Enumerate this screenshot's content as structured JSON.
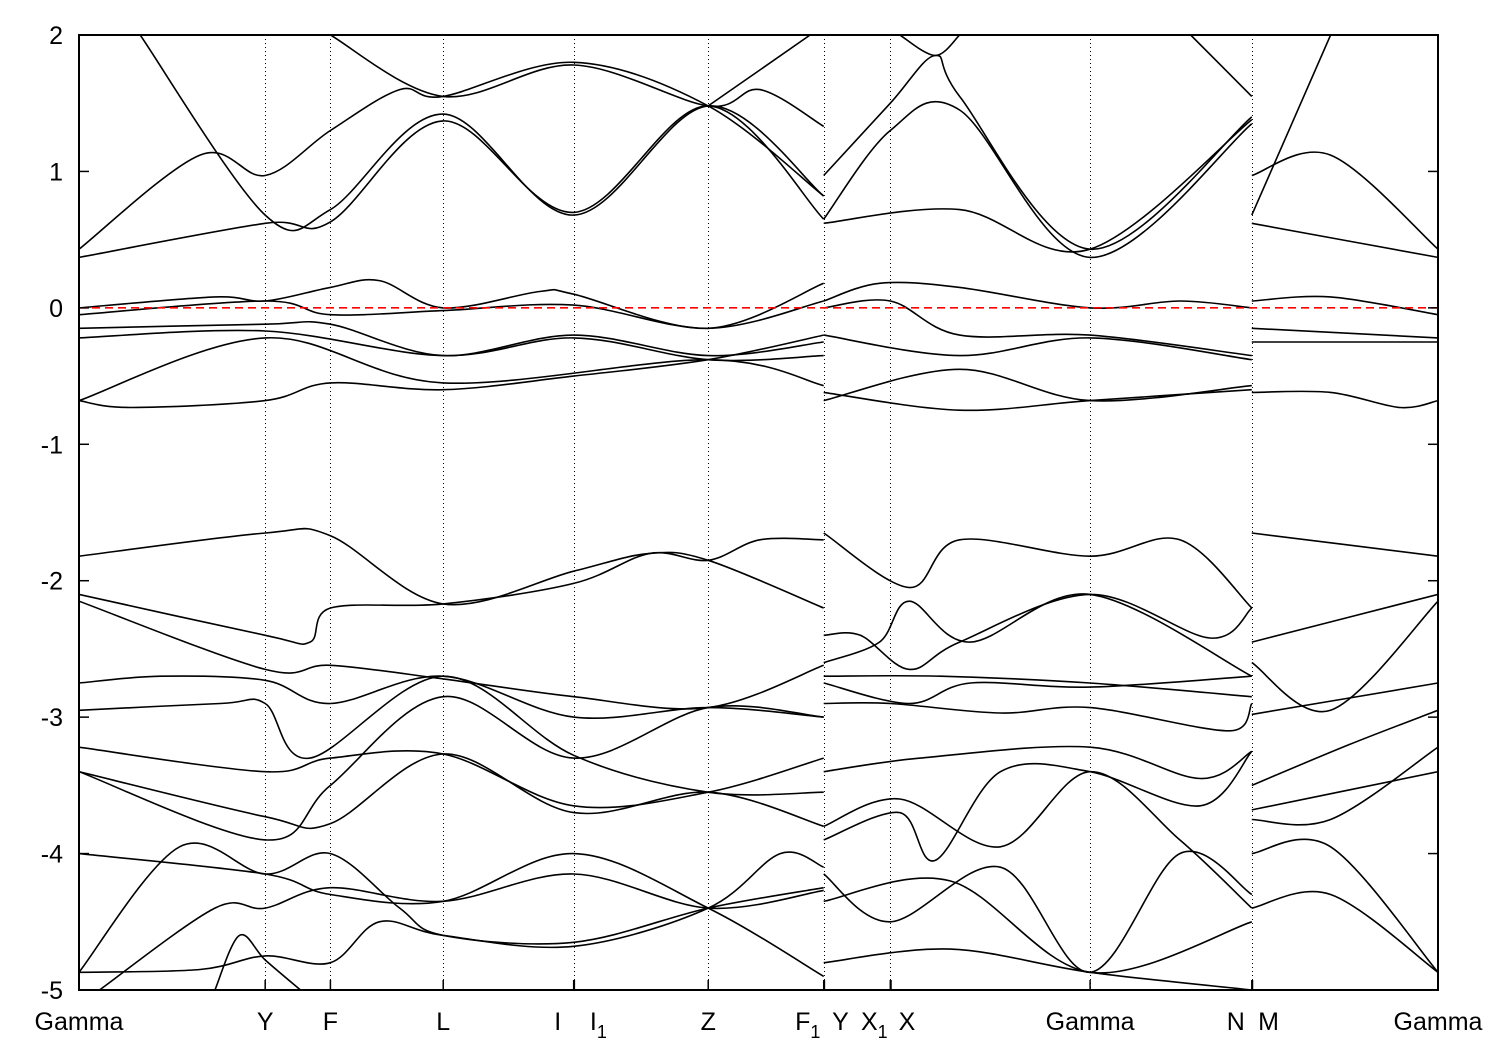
{
  "chart_data": {
    "type": "line",
    "title": "",
    "xlabel": "",
    "ylabel": "",
    "ylim": [
      -5,
      2
    ],
    "xlim": [
      0,
      1
    ],
    "yticks": [
      -5,
      -4,
      -3,
      -2,
      -1,
      0,
      1,
      2
    ],
    "xticks": [
      {
        "label": "Gamma",
        "k": 0
      },
      {
        "label": "Y",
        "k": 0.137
      },
      {
        "label": "F",
        "k": 0.185
      },
      {
        "label": "L",
        "k": 0.268
      },
      {
        "label": "I",
        "k": 0.364
      },
      {
        "label": "I",
        "sub": "1",
        "k": 0.3645
      },
      {
        "label": "Z",
        "k": 0.463
      },
      {
        "label": "F",
        "sub": "1",
        "k": 0.548
      },
      {
        "label": "Y",
        "k": 0.5485
      },
      {
        "label": "X",
        "sub": "1",
        "k": 0.597
      },
      {
        "label": "X",
        "k": 0.5975
      },
      {
        "label": "Gamma",
        "k": 0.744
      },
      {
        "label": "N",
        "k": 0.863
      },
      {
        "label": "M",
        "k": 0.8635
      },
      {
        "label": "Gamma",
        "k": 1
      }
    ],
    "fermi_level": 0,
    "colors": {
      "bands": "#000000",
      "fermi": "#ff0000"
    },
    "bands": [
      [
        [
          0,
          0.37
        ],
        [
          0.137,
          0.62
        ],
        [
          0.185,
          0.63
        ],
        [
          0.268,
          1.37
        ],
        [
          0.364,
          0.7
        ],
        [
          0.463,
          1.48
        ],
        [
          0.548,
          0.65
        ]
      ],
      [
        [
          0,
          0.43
        ],
        [
          0.089,
          1.12
        ],
        [
          0.137,
          0.97
        ],
        [
          0.185,
          1.3
        ],
        [
          0.236,
          1.6
        ],
        [
          0.268,
          1.55
        ],
        [
          0.364,
          1.8
        ],
        [
          0.463,
          1.48
        ],
        [
          0.548,
          0.82
        ]
      ],
      [
        [
          0.045,
          2.0
        ],
        [
          0.137,
          0.68
        ],
        [
          0.185,
          0.72
        ],
        [
          0.268,
          1.42
        ],
        [
          0.364,
          0.68
        ],
        [
          0.463,
          1.48
        ],
        [
          0.548,
          0.82
        ]
      ],
      [
        [
          0.185,
          2.0
        ],
        [
          0.268,
          1.55
        ],
        [
          0.364,
          1.78
        ],
        [
          0.463,
          1.48
        ],
        [
          0.501,
          1.6
        ],
        [
          0.548,
          1.33
        ]
      ],
      [
        [
          0.463,
          1.48
        ],
        [
          0.538,
          2.0
        ]
      ],
      [
        [
          0.548,
          0.97
        ],
        [
          0.597,
          1.5
        ],
        [
          0.63,
          1.85
        ],
        [
          0.648,
          1.55
        ],
        [
          0.744,
          0.43
        ],
        [
          0.863,
          1.4
        ]
      ],
      [
        [
          0.548,
          0.65
        ],
        [
          0.597,
          1.3
        ],
        [
          0.648,
          1.45
        ],
        [
          0.744,
          0.37
        ],
        [
          0.863,
          1.35
        ]
      ],
      [
        [
          0.548,
          0.62
        ],
        [
          0.648,
          0.72
        ],
        [
          0.744,
          0.43
        ],
        [
          0.863,
          1.38
        ]
      ],
      [
        [
          0.604,
          2.0
        ],
        [
          0.63,
          1.85
        ],
        [
          0.648,
          2.0
        ]
      ],
      [
        [
          0.818,
          2.0
        ],
        [
          0.863,
          1.55
        ]
      ],
      [
        [
          0.863,
          0.97
        ],
        [
          0.921,
          1.12
        ],
        [
          1,
          0.43
        ]
      ],
      [
        [
          0.863,
          0.68
        ],
        [
          0.921,
          2.0
        ]
      ],
      [
        [
          0.863,
          0.62
        ],
        [
          1,
          0.37
        ]
      ],
      [
        [
          0,
          0.0
        ],
        [
          0.1,
          0.08
        ],
        [
          0.137,
          0.05
        ],
        [
          0.185,
          0.15
        ],
        [
          0.221,
          0.2
        ],
        [
          0.268,
          0.0
        ],
        [
          0.339,
          0.12
        ],
        [
          0.364,
          0.1
        ],
        [
          0.463,
          -0.15
        ],
        [
          0.548,
          0.18
        ]
      ],
      [
        [
          0,
          -0.05
        ],
        [
          0.137,
          0.05
        ],
        [
          0.185,
          -0.05
        ],
        [
          0.268,
          -0.02
        ],
        [
          0.364,
          0.02
        ],
        [
          0.463,
          -0.15
        ],
        [
          0.548,
          0.05
        ]
      ],
      [
        [
          0,
          -0.15
        ],
        [
          0.137,
          -0.12
        ],
        [
          0.185,
          -0.12
        ],
        [
          0.268,
          -0.35
        ],
        [
          0.364,
          -0.2
        ],
        [
          0.463,
          -0.35
        ],
        [
          0.548,
          -0.25
        ]
      ],
      [
        [
          0,
          -0.22
        ],
        [
          0.137,
          -0.17
        ],
        [
          0.268,
          -0.35
        ],
        [
          0.364,
          -0.22
        ],
        [
          0.463,
          -0.38
        ],
        [
          0.548,
          -0.35
        ]
      ],
      [
        [
          0,
          -0.68
        ],
        [
          0.137,
          -0.22
        ],
        [
          0.268,
          -0.55
        ],
        [
          0.463,
          -0.38
        ],
        [
          0.548,
          -0.57
        ]
      ],
      [
        [
          0,
          -0.68
        ],
        [
          0.038,
          -0.73
        ],
        [
          0.137,
          -0.68
        ],
        [
          0.185,
          -0.55
        ],
        [
          0.268,
          -0.6
        ],
        [
          0.364,
          -0.5
        ],
        [
          0.463,
          -0.38
        ],
        [
          0.548,
          -0.2
        ]
      ],
      [
        [
          0.548,
          0.05
        ],
        [
          0.589,
          0.18
        ],
        [
          0.648,
          0.15
        ],
        [
          0.744,
          0.0
        ],
        [
          0.81,
          0.05
        ],
        [
          0.863,
          0.0
        ]
      ],
      [
        [
          0.548,
          0.0
        ],
        [
          0.597,
          0.05
        ],
        [
          0.648,
          -0.2
        ],
        [
          0.744,
          -0.2
        ],
        [
          0.863,
          -0.35
        ]
      ],
      [
        [
          0.548,
          -0.2
        ],
        [
          0.648,
          -0.35
        ],
        [
          0.744,
          -0.22
        ],
        [
          0.863,
          -0.38
        ]
      ],
      [
        [
          0.548,
          -0.68
        ],
        [
          0.648,
          -0.45
        ],
        [
          0.744,
          -0.68
        ],
        [
          0.863,
          -0.57
        ]
      ],
      [
        [
          0.548,
          -0.62
        ],
        [
          0.648,
          -0.75
        ],
        [
          0.744,
          -0.68
        ],
        [
          0.863,
          -0.6
        ]
      ],
      [
        [
          0.863,
          0.05
        ],
        [
          0.921,
          0.08
        ],
        [
          1,
          -0.05
        ]
      ],
      [
        [
          0.863,
          -0.15
        ],
        [
          1,
          -0.22
        ]
      ],
      [
        [
          0.863,
          -0.25
        ],
        [
          1,
          -0.25
        ]
      ],
      [
        [
          0.863,
          -0.62
        ],
        [
          0.921,
          -0.62
        ],
        [
          0.972,
          -0.73
        ],
        [
          1,
          -0.68
        ]
      ],
      [
        [
          0,
          -1.82
        ],
        [
          0.137,
          -1.65
        ],
        [
          0.185,
          -1.67
        ],
        [
          0.268,
          -2.17
        ],
        [
          0.364,
          -1.93
        ],
        [
          0.42,
          -1.8
        ],
        [
          0.463,
          -1.85
        ],
        [
          0.548,
          -2.2
        ]
      ],
      [
        [
          0,
          -2.1
        ],
        [
          0.137,
          -2.4
        ],
        [
          0.17,
          -2.45
        ],
        [
          0.185,
          -2.2
        ],
        [
          0.268,
          -2.17
        ],
        [
          0.364,
          -2.02
        ],
        [
          0.42,
          -1.8
        ],
        [
          0.463,
          -1.85
        ],
        [
          0.501,
          -1.7
        ],
        [
          0.548,
          -1.7
        ]
      ],
      [
        [
          0,
          -2.15
        ],
        [
          0.137,
          -2.65
        ],
        [
          0.185,
          -2.62
        ],
        [
          0.268,
          -2.72
        ],
        [
          0.364,
          -2.85
        ],
        [
          0.463,
          -2.93
        ],
        [
          0.548,
          -2.62
        ]
      ],
      [
        [
          0,
          -2.75
        ],
        [
          0.06,
          -2.7
        ],
        [
          0.137,
          -2.73
        ],
        [
          0.185,
          -2.9
        ],
        [
          0.268,
          -2.7
        ],
        [
          0.364,
          -3.0
        ],
        [
          0.463,
          -2.93
        ],
        [
          0.548,
          -3.0
        ]
      ],
      [
        [
          0,
          -2.95
        ],
        [
          0.104,
          -2.9
        ],
        [
          0.137,
          -2.9
        ],
        [
          0.17,
          -3.3
        ],
        [
          0.268,
          -2.7
        ],
        [
          0.364,
          -3.28
        ],
        [
          0.463,
          -3.55
        ],
        [
          0.548,
          -3.55
        ]
      ],
      [
        [
          0,
          -3.22
        ],
        [
          0.137,
          -3.4
        ],
        [
          0.185,
          -3.3
        ],
        [
          0.268,
          -3.27
        ],
        [
          0.364,
          -3.65
        ],
        [
          0.463,
          -3.55
        ],
        [
          0.548,
          -3.3
        ]
      ],
      [
        [
          0,
          -3.4
        ],
        [
          0.137,
          -3.9
        ],
        [
          0.185,
          -3.5
        ],
        [
          0.268,
          -2.85
        ],
        [
          0.364,
          -3.3
        ],
        [
          0.463,
          -2.93
        ],
        [
          0.548,
          -3.0
        ]
      ],
      [
        [
          0,
          -3.4
        ],
        [
          0.137,
          -3.73
        ],
        [
          0.185,
          -3.78
        ],
        [
          0.268,
          -3.27
        ],
        [
          0.364,
          -3.7
        ],
        [
          0.463,
          -3.55
        ],
        [
          0.548,
          -3.8
        ]
      ],
      [
        [
          0,
          -4.87
        ],
        [
          0.074,
          -3.95
        ],
        [
          0.137,
          -4.15
        ],
        [
          0.185,
          -4.0
        ],
        [
          0.236,
          -4.4
        ],
        [
          0.268,
          -4.6
        ],
        [
          0.364,
          -4.65
        ],
        [
          0.463,
          -4.4
        ],
        [
          0.548,
          -4.25
        ]
      ],
      [
        [
          0,
          -4.87
        ],
        [
          0.089,
          -4.85
        ],
        [
          0.137,
          -4.75
        ],
        [
          0.185,
          -4.8
        ],
        [
          0.221,
          -4.5
        ],
        [
          0.268,
          -4.6
        ],
        [
          0.364,
          -4.68
        ],
        [
          0.463,
          -4.4
        ],
        [
          0.516,
          -4.0
        ],
        [
          0.548,
          -4.1
        ]
      ],
      [
        [
          0,
          -4.0
        ],
        [
          0.137,
          -4.15
        ],
        [
          0.185,
          -4.3
        ],
        [
          0.268,
          -4.35
        ],
        [
          0.364,
          -4.0
        ],
        [
          0.463,
          -4.4
        ],
        [
          0.548,
          -4.9
        ]
      ],
      [
        [
          0.015,
          -5.0
        ],
        [
          0.1,
          -4.4
        ],
        [
          0.137,
          -4.4
        ],
        [
          0.185,
          -4.25
        ],
        [
          0.268,
          -4.35
        ],
        [
          0.364,
          -4.15
        ],
        [
          0.463,
          -4.4
        ],
        [
          0.548,
          -4.27
        ]
      ],
      [
        [
          0.1,
          -5.0
        ],
        [
          0.118,
          -4.6
        ],
        [
          0.137,
          -4.78
        ],
        [
          0.163,
          -5.0
        ]
      ],
      [
        [
          0.548,
          -1.65
        ],
        [
          0.611,
          -2.05
        ],
        [
          0.648,
          -1.7
        ],
        [
          0.744,
          -1.82
        ],
        [
          0.81,
          -1.7
        ],
        [
          0.863,
          -2.2
        ]
      ],
      [
        [
          0.548,
          -2.4
        ],
        [
          0.575,
          -2.4
        ],
        [
          0.611,
          -2.65
        ],
        [
          0.648,
          -2.45
        ],
        [
          0.744,
          -2.1
        ],
        [
          0.832,
          -2.42
        ],
        [
          0.863,
          -2.2
        ]
      ],
      [
        [
          0.548,
          -2.6
        ],
        [
          0.589,
          -2.45
        ],
        [
          0.611,
          -2.15
        ],
        [
          0.656,
          -2.45
        ],
        [
          0.744,
          -2.1
        ],
        [
          0.863,
          -2.7
        ]
      ],
      [
        [
          0.548,
          -2.75
        ],
        [
          0.611,
          -2.9
        ],
        [
          0.656,
          -2.75
        ],
        [
          0.744,
          -2.78
        ],
        [
          0.863,
          -2.7
        ]
      ],
      [
        [
          0.548,
          -2.7
        ],
        [
          0.634,
          -2.7
        ],
        [
          0.744,
          -2.75
        ],
        [
          0.863,
          -2.85
        ]
      ],
      [
        [
          0.548,
          -2.9
        ],
        [
          0.597,
          -2.9
        ],
        [
          0.678,
          -2.97
        ],
        [
          0.744,
          -2.93
        ],
        [
          0.847,
          -3.1
        ],
        [
          0.863,
          -2.9
        ]
      ],
      [
        [
          0.548,
          -3.4
        ],
        [
          0.619,
          -3.3
        ],
        [
          0.744,
          -3.22
        ],
        [
          0.825,
          -3.45
        ],
        [
          0.863,
          -3.25
        ]
      ],
      [
        [
          0.548,
          -3.9
        ],
        [
          0.604,
          -3.7
        ],
        [
          0.63,
          -4.05
        ],
        [
          0.678,
          -3.4
        ],
        [
          0.744,
          -3.4
        ],
        [
          0.825,
          -3.65
        ],
        [
          0.863,
          -3.25
        ]
      ],
      [
        [
          0.548,
          -3.8
        ],
        [
          0.604,
          -3.6
        ],
        [
          0.678,
          -3.95
        ],
        [
          0.744,
          -3.4
        ],
        [
          0.81,
          -3.9
        ],
        [
          0.863,
          -4.4
        ]
      ],
      [
        [
          0.548,
          -4.15
        ],
        [
          0.597,
          -4.5
        ],
        [
          0.678,
          -4.1
        ],
        [
          0.744,
          -4.87
        ],
        [
          0.81,
          -4.0
        ],
        [
          0.863,
          -4.3
        ]
      ],
      [
        [
          0.548,
          -4.35
        ],
        [
          0.641,
          -4.2
        ],
        [
          0.744,
          -4.87
        ],
        [
          0.863,
          -4.5
        ]
      ],
      [
        [
          0.548,
          -4.8
        ],
        [
          0.641,
          -4.7
        ],
        [
          0.744,
          -4.87
        ],
        [
          0.863,
          -5.0
        ]
      ],
      [
        [
          0.863,
          -1.65
        ],
        [
          1,
          -1.82
        ]
      ],
      [
        [
          0.863,
          -2.45
        ],
        [
          1,
          -2.1
        ]
      ],
      [
        [
          0.863,
          -2.6
        ],
        [
          0.921,
          -2.95
        ],
        [
          1,
          -2.15
        ]
      ],
      [
        [
          0.863,
          -2.98
        ],
        [
          1,
          -2.75
        ]
      ],
      [
        [
          0.863,
          -3.5
        ],
        [
          0.935,
          -3.2
        ],
        [
          1,
          -2.95
        ]
      ],
      [
        [
          0.863,
          -3.75
        ],
        [
          0.921,
          -3.75
        ],
        [
          1,
          -3.22
        ]
      ],
      [
        [
          0.863,
          -3.68
        ],
        [
          1,
          -3.4
        ]
      ],
      [
        [
          0.863,
          -4.0
        ],
        [
          0.921,
          -3.95
        ],
        [
          1,
          -4.87
        ]
      ],
      [
        [
          0.863,
          -4.4
        ],
        [
          0.921,
          -4.3
        ],
        [
          1,
          -4.87
        ]
      ]
    ]
  }
}
